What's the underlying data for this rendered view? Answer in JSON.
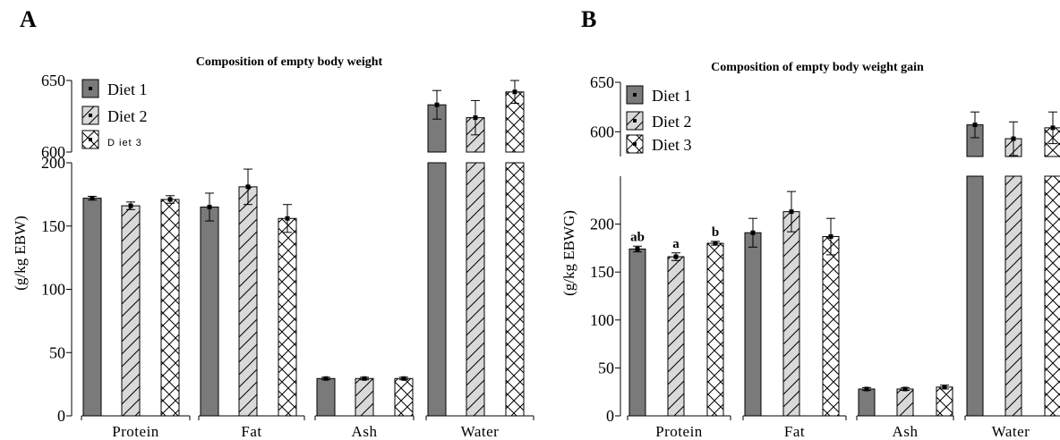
{
  "colors": {
    "diet1": "#7a7a7a",
    "diet2": "#d9d9d9",
    "diet3": "#ffffff",
    "stroke": "#000000"
  },
  "chart_data": [
    {
      "panel": "A",
      "type": "bar",
      "title": "Composition of empty body weight",
      "ylabel": "(g/kg EBW)",
      "categories": [
        "Protein",
        "Fat",
        "Ash",
        "Water"
      ],
      "lower_axis": {
        "ylim": [
          0,
          200
        ],
        "ticks": [
          0,
          50,
          100,
          150,
          200
        ]
      },
      "upper_axis": {
        "ylim": [
          600,
          650
        ],
        "ticks": [
          600,
          650
        ]
      },
      "series": [
        {
          "name": "Diet 1",
          "legend_label": "Diet 1",
          "pattern": "solid",
          "values": [
            172,
            165,
            29.5,
            633
          ],
          "errors": [
            1.5,
            11,
            1,
            10
          ]
        },
        {
          "name": "Diet 2",
          "legend_label": "Diet 2",
          "pattern": "hatch",
          "values": [
            166,
            181,
            29.5,
            624
          ],
          "errors": [
            3,
            14,
            1,
            12
          ]
        },
        {
          "name": "Diet 3",
          "legend_label": "D iet 3",
          "pattern": "cross",
          "values": [
            171,
            156,
            29.5,
            642
          ],
          "errors": [
            3,
            11,
            1,
            8
          ]
        }
      ],
      "annotations": [],
      "legend_position": "top-left"
    },
    {
      "panel": "B",
      "type": "bar",
      "title": "Composition of empty body weight gain",
      "ylabel": "(g/kg EBWG)",
      "categories": [
        "Protein",
        "Fat",
        "Ash",
        "Water"
      ],
      "lower_axis": {
        "ylim": [
          0,
          250
        ],
        "ticks": [
          0,
          50,
          100,
          150,
          200
        ]
      },
      "upper_axis": {
        "ylim": [
          575,
          650
        ],
        "ticks": [
          600,
          650
        ]
      },
      "series": [
        {
          "name": "Diet 1",
          "legend_label": "Diet 1",
          "pattern": "solid",
          "values": [
            174,
            191,
            28,
            607
          ],
          "errors": [
            3,
            15,
            1.5,
            13
          ]
        },
        {
          "name": "Diet 2",
          "legend_label": "Diet 2",
          "pattern": "hatch",
          "values": [
            166,
            213,
            28,
            593
          ],
          "errors": [
            4,
            21,
            1.5,
            17
          ]
        },
        {
          "name": "Diet 3",
          "legend_label": "Diet 3",
          "pattern": "cross",
          "values": [
            180,
            187,
            30,
            604
          ],
          "errors": [
            2,
            19,
            2,
            16
          ]
        }
      ],
      "annotations": [
        {
          "category": "Protein",
          "series": "Diet 1",
          "text": "ab"
        },
        {
          "category": "Protein",
          "series": "Diet 2",
          "text": "a"
        },
        {
          "category": "Protein",
          "series": "Diet 3",
          "text": "b"
        }
      ],
      "legend_position": "top-left"
    }
  ]
}
